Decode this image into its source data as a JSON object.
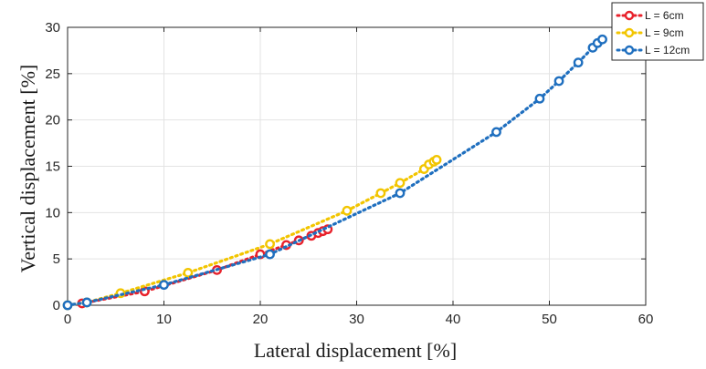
{
  "chart_data": {
    "type": "scatter",
    "title": "",
    "xlabel": "Lateral displacement [%]",
    "ylabel": "Vertical displacement [%]",
    "xlim": [
      0,
      60
    ],
    "ylim": [
      0,
      30
    ],
    "xticks": [
      0,
      10,
      20,
      30,
      40,
      50,
      60
    ],
    "yticks": [
      0,
      5,
      10,
      15,
      20,
      25,
      30
    ],
    "grid": true,
    "legend_position": "top-right",
    "series": [
      {
        "name": "L = 6cm",
        "color": "#e8212b",
        "x": [
          1.5,
          8,
          15.5,
          20,
          22.7,
          24,
          25.3,
          26,
          26.5,
          27
        ],
        "y": [
          0.2,
          1.5,
          3.8,
          5.5,
          6.5,
          7.0,
          7.5,
          7.8,
          8.0,
          8.2
        ]
      },
      {
        "name": "L = 9cm",
        "color": "#f2c500",
        "x": [
          0,
          2,
          5.5,
          12.5,
          21,
          29,
          32.5,
          34.5,
          37,
          37.5,
          38,
          38.3
        ],
        "y": [
          0,
          0.3,
          1.3,
          3.5,
          6.6,
          10.2,
          12.1,
          13.2,
          14.7,
          15.2,
          15.5,
          15.7
        ]
      },
      {
        "name": "L = 12cm",
        "color": "#1f6fbf",
        "x": [
          0,
          2,
          10,
          21,
          34.5,
          44.5,
          49,
          51,
          53,
          54.5,
          55,
          55.5
        ],
        "y": [
          0,
          0.3,
          2.2,
          5.5,
          12.1,
          18.7,
          22.3,
          24.2,
          26.2,
          27.8,
          28.3,
          28.7
        ]
      }
    ]
  }
}
